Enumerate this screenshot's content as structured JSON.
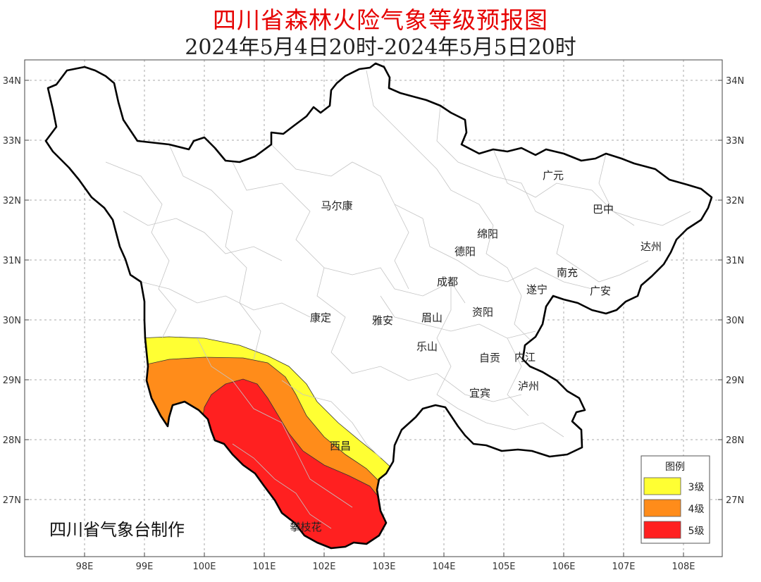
{
  "title": "四川省森林火险气象等级预报图",
  "subtitle": "2024年5月4日20时-2024年5月5日20时",
  "map": {
    "lat_labels": [
      "34N",
      "33N",
      "32N",
      "31N",
      "30N",
      "29N",
      "28N",
      "27N"
    ],
    "lon_labels": [
      "98E",
      "99E",
      "100E",
      "101E",
      "102E",
      "103E",
      "104E",
      "105E",
      "106E",
      "107E",
      "108E"
    ],
    "cities": [
      {
        "name": "广元"
      },
      {
        "name": "巴中"
      },
      {
        "name": "马尔康"
      },
      {
        "name": "绵阳"
      },
      {
        "name": "达州"
      },
      {
        "name": "德阳"
      },
      {
        "name": "南充"
      },
      {
        "name": "成都"
      },
      {
        "name": "遂宁"
      },
      {
        "name": "广安"
      },
      {
        "name": "康定"
      },
      {
        "name": "雅安"
      },
      {
        "name": "眉山"
      },
      {
        "name": "资阳"
      },
      {
        "name": "乐山"
      },
      {
        "name": "自贡"
      },
      {
        "name": "内江"
      },
      {
        "name": "泸州"
      },
      {
        "name": "宜宾"
      },
      {
        "name": "西昌"
      },
      {
        "name": "攀枝花"
      }
    ],
    "credit": "四川省气象台制作"
  },
  "legend": {
    "title": "图例",
    "items": [
      {
        "label": "3级",
        "color": "#ffff33"
      },
      {
        "label": "4级",
        "color": "#ff8c1a"
      },
      {
        "label": "5级",
        "color": "#ff2020"
      }
    ]
  },
  "colors": {
    "title": "#e60000",
    "province_border": "#000000",
    "county_border": "#bbbbbb"
  }
}
